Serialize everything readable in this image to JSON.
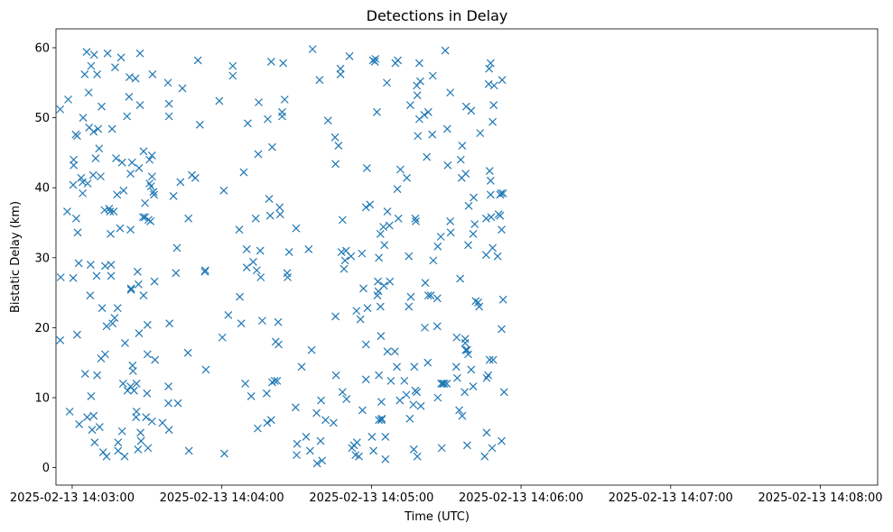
{
  "chart_data": {
    "type": "scatter",
    "title": "Detections in Delay",
    "xlabel": "Time (UTC)",
    "ylabel": "Bistatic Delay (km)",
    "marker": "x",
    "color": "#1f77b4",
    "grid": false,
    "x_unit": "seconds after 2025-02-13 14:03:00 UTC",
    "xlim": [
      -6.5,
      323
    ],
    "ylim": [
      -2.5,
      62.7
    ],
    "xticks": [
      0,
      60,
      120,
      180,
      240,
      300
    ],
    "xtick_labels": [
      "2025-02-13 14:03:00",
      "2025-02-13 14:04:00",
      "2025-02-13 14:05:00",
      "2025-02-13 14:06:00",
      "2025-02-13 14:07:00",
      "2025-02-13 14:08:00"
    ],
    "yticks": [
      0,
      10,
      20,
      30,
      40,
      50,
      60
    ],
    "ytick_labels": [
      "0",
      "10",
      "20",
      "30",
      "40",
      "50",
      "60"
    ],
    "points": [
      [
        -4.8,
        51.2
      ],
      [
        -1.6,
        52.6
      ],
      [
        -4.6,
        27.2
      ],
      [
        -4.8,
        18.2
      ],
      [
        -2.0,
        36.6
      ],
      [
        -1.0,
        8.0
      ],
      [
        0.6,
        43.2
      ],
      [
        0.4,
        27.1
      ],
      [
        0.6,
        44.0
      ],
      [
        0.4,
        40.4
      ],
      [
        1.4,
        47.6
      ],
      [
        2.0,
        47.4
      ],
      [
        1.6,
        35.6
      ],
      [
        2.2,
        33.6
      ],
      [
        2.0,
        19.0
      ],
      [
        2.6,
        29.2
      ],
      [
        2.8,
        6.2
      ],
      [
        3.6,
        41.4
      ],
      [
        4.2,
        40.8
      ],
      [
        4.2,
        39.2
      ],
      [
        4.4,
        50.0
      ],
      [
        5.0,
        56.2
      ],
      [
        5.2,
        13.4
      ],
      [
        5.8,
        59.4
      ],
      [
        6.2,
        40.6
      ],
      [
        6.0,
        7.2
      ],
      [
        6.6,
        53.6
      ],
      [
        6.8,
        48.6
      ],
      [
        7.2,
        24.6
      ],
      [
        7.4,
        29.0
      ],
      [
        7.6,
        10.2
      ],
      [
        7.6,
        57.4
      ],
      [
        8.0,
        5.4
      ],
      [
        8.4,
        41.8
      ],
      [
        8.6,
        48.0
      ],
      [
        8.6,
        7.4
      ],
      [
        8.8,
        59.0
      ],
      [
        9.0,
        3.6
      ],
      [
        9.4,
        44.2
      ],
      [
        9.8,
        27.4
      ],
      [
        10.0,
        13.2
      ],
      [
        10.0,
        56.2
      ],
      [
        10.4,
        48.4
      ],
      [
        10.8,
        45.6
      ],
      [
        11.0,
        5.8
      ],
      [
        11.4,
        41.6
      ],
      [
        11.6,
        15.6
      ],
      [
        11.8,
        51.6
      ],
      [
        12.0,
        22.8
      ],
      [
        12.4,
        2.2
      ],
      [
        13.0,
        36.8
      ],
      [
        13.2,
        28.8
      ],
      [
        13.8,
        20.2
      ],
      [
        13.2,
        16.2
      ],
      [
        13.8,
        1.6
      ],
      [
        14.2,
        59.2
      ],
      [
        14.8,
        37.0
      ],
      [
        15.2,
        36.6
      ],
      [
        15.6,
        29.0
      ],
      [
        15.6,
        27.4
      ],
      [
        15.4,
        33.4
      ],
      [
        16.0,
        48.4
      ],
      [
        16.2,
        20.6
      ],
      [
        16.6,
        36.6
      ],
      [
        17.0,
        21.4
      ],
      [
        17.2,
        57.2
      ],
      [
        17.6,
        44.2
      ],
      [
        18.0,
        39.0
      ],
      [
        18.2,
        22.8
      ],
      [
        18.4,
        3.6
      ],
      [
        18.4,
        2.4
      ],
      [
        19.2,
        34.2
      ],
      [
        19.6,
        58.6
      ],
      [
        20.0,
        43.6
      ],
      [
        20.0,
        5.2
      ],
      [
        20.4,
        12.0
      ],
      [
        20.6,
        39.6
      ],
      [
        21.0,
        1.6
      ],
      [
        21.2,
        17.8
      ],
      [
        22.0,
        50.2
      ],
      [
        22.2,
        11.0
      ],
      [
        22.8,
        53.0
      ],
      [
        23.0,
        55.8
      ],
      [
        23.4,
        42.0
      ],
      [
        23.4,
        11.6
      ],
      [
        23.4,
        34.0
      ],
      [
        24.0,
        43.6
      ],
      [
        23.6,
        25.6
      ],
      [
        23.6,
        25.4
      ],
      [
        24.2,
        14.6
      ],
      [
        24.4,
        13.8
      ],
      [
        24.8,
        11.0
      ],
      [
        25.6,
        7.2
      ],
      [
        25.8,
        8.0
      ],
      [
        25.4,
        55.6
      ],
      [
        25.8,
        12.0
      ],
      [
        26.2,
        28.0
      ],
      [
        26.4,
        2.6
      ],
      [
        26.6,
        26.2
      ],
      [
        26.8,
        19.2
      ],
      [
        26.8,
        42.8
      ],
      [
        27.2,
        51.8
      ],
      [
        27.2,
        59.2
      ],
      [
        27.4,
        5.0
      ],
      [
        27.6,
        3.8
      ],
      [
        28.4,
        35.8
      ],
      [
        28.6,
        24.6
      ],
      [
        28.6,
        45.2
      ],
      [
        29.2,
        37.8
      ],
      [
        29.2,
        35.8
      ],
      [
        29.6,
        7.2
      ],
      [
        30.0,
        10.6
      ],
      [
        30.2,
        16.2
      ],
      [
        30.2,
        20.4
      ],
      [
        30.4,
        2.8
      ],
      [
        30.6,
        35.4
      ],
      [
        31.0,
        44.0
      ],
      [
        31.0,
        40.6
      ],
      [
        31.4,
        35.2
      ],
      [
        31.6,
        40.2
      ],
      [
        32.0,
        44.6
      ],
      [
        32.0,
        41.6
      ],
      [
        32.2,
        56.2
      ],
      [
        32.0,
        6.6
      ],
      [
        33.0,
        26.6
      ],
      [
        32.6,
        39.4
      ],
      [
        32.8,
        39.0
      ],
      [
        33.2,
        15.4
      ],
      [
        36.2,
        6.4
      ],
      [
        38.8,
        5.4
      ],
      [
        38.6,
        11.6
      ],
      [
        38.4,
        55.0
      ],
      [
        38.8,
        52.0
      ],
      [
        38.8,
        50.2
      ],
      [
        39.0,
        20.6
      ],
      [
        38.6,
        9.2
      ],
      [
        40.6,
        38.8
      ],
      [
        41.6,
        27.8
      ],
      [
        42.0,
        31.4
      ],
      [
        42.4,
        9.2
      ],
      [
        43.4,
        40.8
      ],
      [
        44.2,
        54.2
      ],
      [
        46.6,
        35.6
      ],
      [
        46.4,
        16.4
      ],
      [
        46.8,
        2.4
      ],
      [
        48.0,
        41.8
      ],
      [
        49.4,
        41.4
      ],
      [
        50.4,
        58.2
      ],
      [
        51.2,
        49.0
      ],
      [
        53.2,
        28.0
      ],
      [
        53.4,
        28.2
      ],
      [
        53.6,
        14.0
      ],
      [
        59.0,
        52.4
      ],
      [
        60.2,
        18.6
      ],
      [
        61.0,
        2.0
      ],
      [
        60.8,
        39.6
      ],
      [
        62.6,
        21.8
      ],
      [
        64.4,
        56.0
      ],
      [
        64.4,
        57.4
      ],
      [
        67.0,
        34.0
      ],
      [
        67.2,
        24.4
      ],
      [
        67.8,
        20.6
      ],
      [
        68.8,
        42.2
      ],
      [
        69.4,
        12.0
      ],
      [
        70.0,
        31.2
      ],
      [
        70.0,
        28.6
      ],
      [
        70.4,
        49.2
      ],
      [
        71.8,
        10.2
      ],
      [
        72.6,
        29.4
      ],
      [
        73.6,
        35.6
      ],
      [
        74.0,
        28.2
      ],
      [
        74.4,
        5.6
      ],
      [
        74.6,
        44.8
      ],
      [
        74.8,
        52.2
      ],
      [
        75.6,
        27.2
      ],
      [
        75.4,
        31.0
      ],
      [
        76.2,
        21.0
      ],
      [
        78.0,
        10.6
      ],
      [
        78.2,
        6.4
      ],
      [
        78.4,
        49.8
      ],
      [
        79.0,
        38.4
      ],
      [
        79.4,
        36.0
      ],
      [
        79.8,
        6.8
      ],
      [
        80.2,
        12.2
      ],
      [
        79.8,
        58.0
      ],
      [
        80.2,
        45.8
      ],
      [
        81.2,
        12.4
      ],
      [
        81.6,
        18.0
      ],
      [
        82.2,
        12.4
      ],
      [
        82.6,
        20.8
      ],
      [
        82.8,
        17.6
      ],
      [
        83.2,
        37.2
      ],
      [
        83.4,
        36.2
      ],
      [
        84.2,
        50.8
      ],
      [
        84.2,
        50.2
      ],
      [
        84.6,
        57.8
      ],
      [
        85.2,
        52.6
      ],
      [
        86.2,
        27.8
      ],
      [
        86.4,
        27.2
      ],
      [
        87.0,
        30.8
      ],
      [
        89.6,
        8.6
      ],
      [
        89.8,
        34.2
      ],
      [
        90.0,
        1.8
      ],
      [
        90.2,
        3.4
      ],
      [
        92.0,
        14.4
      ],
      [
        93.8,
        4.4
      ],
      [
        94.8,
        31.2
      ],
      [
        95.4,
        2.4
      ],
      [
        96.0,
        16.8
      ],
      [
        96.4,
        59.8
      ],
      [
        98.0,
        7.8
      ],
      [
        98.2,
        0.6
      ],
      [
        99.2,
        55.4
      ],
      [
        99.6,
        3.8
      ],
      [
        99.8,
        9.6
      ],
      [
        100.2,
        1.0
      ],
      [
        101.6,
        6.8
      ],
      [
        102.6,
        49.6
      ],
      [
        104.8,
        6.4
      ],
      [
        105.4,
        47.2
      ],
      [
        105.6,
        21.6
      ],
      [
        105.6,
        43.4
      ],
      [
        105.8,
        13.2
      ],
      [
        106.8,
        46.0
      ],
      [
        107.6,
        56.2
      ],
      [
        107.6,
        57.0
      ],
      [
        108.0,
        30.8
      ],
      [
        108.4,
        10.8
      ],
      [
        108.4,
        35.4
      ],
      [
        109.0,
        28.4
      ],
      [
        109.4,
        29.6
      ],
      [
        109.8,
        31.0
      ],
      [
        110.0,
        9.8
      ],
      [
        111.2,
        58.8
      ],
      [
        111.8,
        30.2
      ],
      [
        112.2,
        2.8
      ],
      [
        113.0,
        3.2
      ],
      [
        113.6,
        1.8
      ],
      [
        114.0,
        22.4
      ],
      [
        114.2,
        3.6
      ],
      [
        115.0,
        1.6
      ],
      [
        115.6,
        21.2
      ],
      [
        116.2,
        30.6
      ],
      [
        116.4,
        8.2
      ],
      [
        116.8,
        25.6
      ],
      [
        117.8,
        17.6
      ],
      [
        117.8,
        37.2
      ],
      [
        117.8,
        12.6
      ],
      [
        118.2,
        42.8
      ],
      [
        118.4,
        22.8
      ],
      [
        119.4,
        37.6
      ],
      [
        120.2,
        4.4
      ],
      [
        120.6,
        58.2
      ],
      [
        120.8,
        2.4
      ],
      [
        121.4,
        58.0
      ],
      [
        121.6,
        58.4
      ],
      [
        122.2,
        50.8
      ],
      [
        122.6,
        26.6
      ],
      [
        123.0,
        13.2
      ],
      [
        122.4,
        24.6
      ],
      [
        122.8,
        25.2
      ],
      [
        123.6,
        23.0
      ],
      [
        123.0,
        6.8
      ],
      [
        123.0,
        30.0
      ],
      [
        123.8,
        18.8
      ],
      [
        123.6,
        33.4
      ],
      [
        124.0,
        9.4
      ],
      [
        124.0,
        6.8
      ],
      [
        124.2,
        7.0
      ],
      [
        124.8,
        34.4
      ],
      [
        125.0,
        26.0
      ],
      [
        125.2,
        31.8
      ],
      [
        125.6,
        1.2
      ],
      [
        125.6,
        4.4
      ],
      [
        126.2,
        55.0
      ],
      [
        126.4,
        16.6
      ],
      [
        126.4,
        36.6
      ],
      [
        127.2,
        34.6
      ],
      [
        127.4,
        26.6
      ],
      [
        127.8,
        12.4
      ],
      [
        129.4,
        16.6
      ],
      [
        129.6,
        57.8
      ],
      [
        130.2,
        14.4
      ],
      [
        130.4,
        39.8
      ],
      [
        130.6,
        58.2
      ],
      [
        130.8,
        35.6
      ],
      [
        131.4,
        9.6
      ],
      [
        131.6,
        42.6
      ],
      [
        133.2,
        12.4
      ],
      [
        134.0,
        10.4
      ],
      [
        134.2,
        41.4
      ],
      [
        135.0,
        30.2
      ],
      [
        135.0,
        23.0
      ],
      [
        135.4,
        7.0
      ],
      [
        135.6,
        51.8
      ],
      [
        135.8,
        24.4
      ],
      [
        136.8,
        9.0
      ],
      [
        137.0,
        2.6
      ],
      [
        137.2,
        14.4
      ],
      [
        137.6,
        35.6
      ],
      [
        137.8,
        35.2
      ],
      [
        137.6,
        11.0
      ],
      [
        138.2,
        10.8
      ],
      [
        138.4,
        1.6
      ],
      [
        138.2,
        54.6
      ],
      [
        138.6,
        47.4
      ],
      [
        138.4,
        53.2
      ],
      [
        139.2,
        57.8
      ],
      [
        139.2,
        49.8
      ],
      [
        139.6,
        55.2
      ],
      [
        139.8,
        8.8
      ],
      [
        141.2,
        50.4
      ],
      [
        141.4,
        20.0
      ],
      [
        141.6,
        26.4
      ],
      [
        142.2,
        44.4
      ],
      [
        142.6,
        15.0
      ],
      [
        142.8,
        24.6
      ],
      [
        142.8,
        50.8
      ],
      [
        143.8,
        24.6
      ],
      [
        144.4,
        47.6
      ],
      [
        144.6,
        56.0
      ],
      [
        144.8,
        29.6
      ],
      [
        146.4,
        20.2
      ],
      [
        146.4,
        24.2
      ],
      [
        146.6,
        10.0
      ],
      [
        146.6,
        31.6
      ],
      [
        147.8,
        33.0
      ],
      [
        148.0,
        12.0
      ],
      [
        148.2,
        2.8
      ],
      [
        148.6,
        12.0
      ],
      [
        149.2,
        12.0
      ],
      [
        149.6,
        59.6
      ],
      [
        150.2,
        12.0
      ],
      [
        150.4,
        48.4
      ],
      [
        150.6,
        43.2
      ],
      [
        151.6,
        53.6
      ],
      [
        151.6,
        35.2
      ],
      [
        151.8,
        33.6
      ],
      [
        154.2,
        18.6
      ],
      [
        154.0,
        14.4
      ],
      [
        154.4,
        12.8
      ],
      [
        155.2,
        8.2
      ],
      [
        155.8,
        44.0
      ],
      [
        155.6,
        27.0
      ],
      [
        156.2,
        41.4
      ],
      [
        156.4,
        7.4
      ],
      [
        156.4,
        46.0
      ],
      [
        157.4,
        10.8
      ],
      [
        157.6,
        17.8
      ],
      [
        157.6,
        18.4
      ],
      [
        157.8,
        16.8
      ],
      [
        157.8,
        42.0
      ],
      [
        158.0,
        51.6
      ],
      [
        158.4,
        16.8
      ],
      [
        158.4,
        3.2
      ],
      [
        158.8,
        16.2
      ],
      [
        158.8,
        31.8
      ],
      [
        159.0,
        37.4
      ],
      [
        160.0,
        51.0
      ],
      [
        160.0,
        14.0
      ],
      [
        160.8,
        11.6
      ],
      [
        160.8,
        33.4
      ],
      [
        161.0,
        38.6
      ],
      [
        161.4,
        34.8
      ],
      [
        161.8,
        23.8
      ],
      [
        162.8,
        23.6
      ],
      [
        163.2,
        23.0
      ],
      [
        163.6,
        47.8
      ],
      [
        165.4,
        1.6
      ],
      [
        166.0,
        30.4
      ],
      [
        166.0,
        35.6
      ],
      [
        166.2,
        5.0
      ],
      [
        166.2,
        12.8
      ],
      [
        166.8,
        13.2
      ],
      [
        167.0,
        54.8
      ],
      [
        167.4,
        42.4
      ],
      [
        167.4,
        15.4
      ],
      [
        167.2,
        57.0
      ],
      [
        167.8,
        57.8
      ],
      [
        167.8,
        41.0
      ],
      [
        167.8,
        39.0
      ],
      [
        168.0,
        35.8
      ],
      [
        168.4,
        2.8
      ],
      [
        168.6,
        49.4
      ],
      [
        168.6,
        31.4
      ],
      [
        168.8,
        15.4
      ],
      [
        169.0,
        51.8
      ],
      [
        169.2,
        54.6
      ],
      [
        170.6,
        30.2
      ],
      [
        171.0,
        36.2
      ],
      [
        171.6,
        36.0
      ],
      [
        171.6,
        39.0
      ],
      [
        172.0,
        39.2
      ],
      [
        172.4,
        55.4
      ],
      [
        172.2,
        19.8
      ],
      [
        172.2,
        34.0
      ],
      [
        172.2,
        3.8
      ],
      [
        172.8,
        24.0
      ],
      [
        172.8,
        39.2
      ],
      [
        173.2,
        10.8
      ]
    ]
  }
}
